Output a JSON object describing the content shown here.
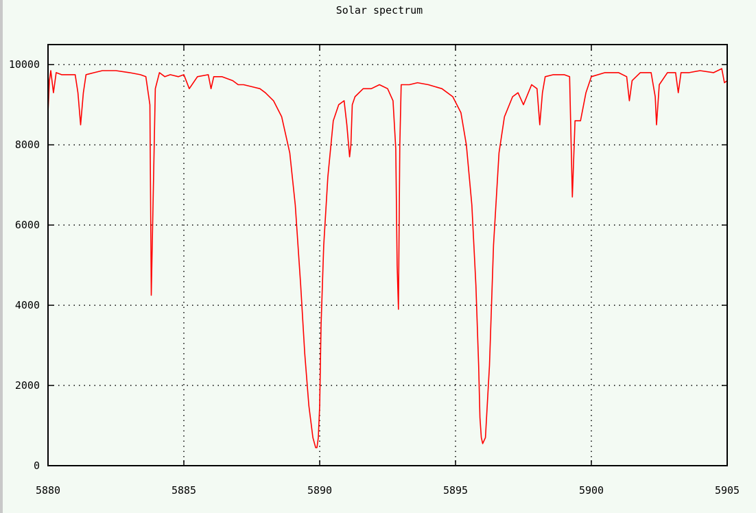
{
  "chart_data": {
    "type": "line",
    "title": "Solar spectrum",
    "xlabel": "",
    "ylabel": "",
    "xlim": [
      5880,
      5905
    ],
    "ylim": [
      0,
      10500
    ],
    "xticks": [
      5880,
      5885,
      5890,
      5895,
      5900,
      5905
    ],
    "yticks": [
      0,
      2000,
      4000,
      6000,
      8000,
      10000
    ],
    "grid": true,
    "line_color": "#ff0000",
    "series": [
      {
        "x": [
          5880.0,
          5880.05,
          5880.1,
          5880.2,
          5880.3,
          5880.5,
          5881.0,
          5881.1,
          5881.2,
          5881.3,
          5881.4,
          5881.7,
          5882.0,
          5882.5,
          5883.0,
          5883.4,
          5883.6,
          5883.75,
          5883.8,
          5883.85,
          5883.95,
          5884.1,
          5884.3,
          5884.5,
          5884.8,
          5885.0,
          5885.2,
          5885.5,
          5885.9,
          5886.0,
          5886.1,
          5886.4,
          5886.8,
          5887.0,
          5887.2,
          5887.5,
          5887.8,
          5888.0,
          5888.3,
          5888.6,
          5888.9,
          5889.1,
          5889.3,
          5889.45,
          5889.6,
          5889.75,
          5889.85,
          5889.9,
          5889.95,
          5890.0,
          5890.05,
          5890.15,
          5890.3,
          5890.5,
          5890.7,
          5890.9,
          5891.0,
          5891.1,
          5891.15,
          5891.2,
          5891.3,
          5891.6,
          5891.9,
          5892.2,
          5892.5,
          5892.7,
          5892.8,
          5892.85,
          5892.9,
          5892.95,
          5893.0,
          5893.1,
          5893.3,
          5893.6,
          5894.0,
          5894.5,
          5894.9,
          5895.2,
          5895.4,
          5895.6,
          5895.75,
          5895.85,
          5895.9,
          5895.95,
          5896.0,
          5896.1,
          5896.25,
          5896.4,
          5896.6,
          5896.8,
          5897.1,
          5897.3,
          5897.5,
          5897.8,
          5898.0,
          5898.1,
          5898.2,
          5898.3,
          5898.6,
          5899.0,
          5899.2,
          5899.3,
          5899.4,
          5899.6,
          5899.8,
          5900.0,
          5900.5,
          5901.0,
          5901.3,
          5901.4,
          5901.5,
          5901.8,
          5902.2,
          5902.35,
          5902.4,
          5902.5,
          5902.8,
          5903.1,
          5903.2,
          5903.3,
          5903.6,
          5904.0,
          5904.5,
          5904.8,
          5904.9,
          5905.0
        ],
        "y": [
          8800,
          9600,
          9850,
          9300,
          9800,
          9750,
          9750,
          9300,
          8500,
          9300,
          9750,
          9800,
          9850,
          9850,
          9800,
          9750,
          9700,
          9000,
          4250,
          6000,
          9400,
          9800,
          9700,
          9750,
          9700,
          9750,
          9400,
          9700,
          9750,
          9400,
          9700,
          9700,
          9600,
          9500,
          9500,
          9450,
          9400,
          9300,
          9100,
          8700,
          7800,
          6500,
          4500,
          2800,
          1500,
          700,
          450,
          450,
          700,
          1500,
          3500,
          5500,
          7200,
          8600,
          9000,
          9100,
          8500,
          7700,
          8000,
          9000,
          9200,
          9400,
          9400,
          9500,
          9400,
          9100,
          7900,
          5000,
          3900,
          8000,
          9500,
          9500,
          9500,
          9550,
          9500,
          9400,
          9200,
          8800,
          8000,
          6500,
          4500,
          2500,
          1200,
          700,
          550,
          700,
          2500,
          5500,
          7800,
          8700,
          9200,
          9300,
          9000,
          9500,
          9400,
          8500,
          9300,
          9700,
          9750,
          9750,
          9700,
          6700,
          8600,
          8600,
          9300,
          9700,
          9800,
          9800,
          9700,
          9100,
          9600,
          9800,
          9800,
          9200,
          8500,
          9500,
          9800,
          9800,
          9300,
          9800,
          9800,
          9850,
          9800,
          9900,
          9550,
          9600
        ]
      }
    ]
  }
}
